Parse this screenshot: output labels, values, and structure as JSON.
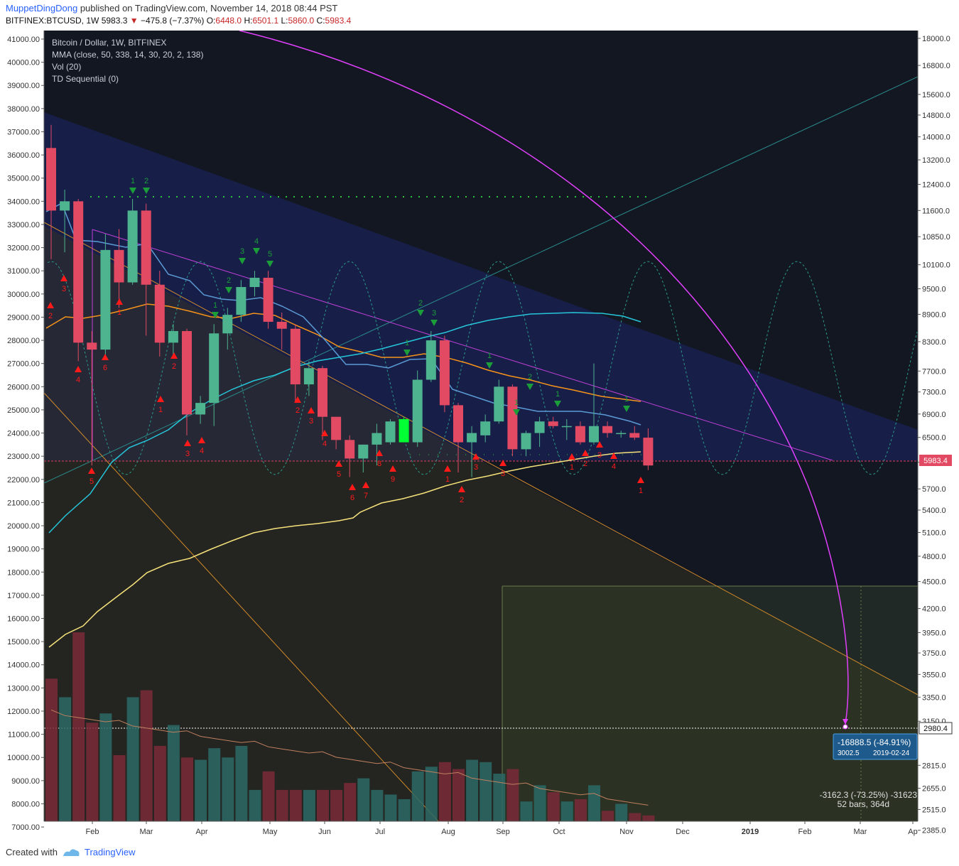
{
  "header": {
    "user": "MuppetDingDong",
    "published_text": "published on TradingView.com, November 14, 2018 08:44 PST",
    "symbol": "BITFINEX:BTCUSD, 1W",
    "last": "5983.3",
    "change": "−475.8 (−7.37%)",
    "o_label": "O:",
    "o": "6448.0",
    "h_label": "H:",
    "h": "6501.1",
    "l_label": "L:",
    "l": "5860.0",
    "c_label": "C:",
    "c": "5983.4"
  },
  "legend": {
    "line1": "Bitcoin / Dollar, 1W, BITFINEX",
    "line2": "MMA (close, 50, 338, 14, 30, 20, 2, 138)",
    "line3": "Vol (20)",
    "line4": "TD Sequential (0)"
  },
  "footer": {
    "created_with": "Created with",
    "brand": "TradingView"
  },
  "price_tags": {
    "last": "5983.4",
    "target": "2980.4",
    "measure_main": "-16888.5 (-84.91%)",
    "measure_sub": "3002.5",
    "measure_date": "2019-02-24",
    "range_main": "-3162.3 (-73.25%) -31623",
    "range_sub": "52 bars, 364d"
  },
  "colors": {
    "background": "#131722",
    "up": "#4eb38f",
    "down": "#e24a63",
    "bright_up": "#00ff33",
    "ma_orange": "#f7931a",
    "ma_yellow": "#f5e27a",
    "ma_blue": "#5b9bd5",
    "ma_cyan": "#26c6da",
    "magenta": "#e040fb",
    "td_buy": "#ff1a1a",
    "td_sell": "#1b9e3a"
  },
  "chart_data": {
    "type": "candlestick",
    "title": "Bitcoin / Dollar, 1W, BITFINEX",
    "timeframe": "1W",
    "x_ticks": [
      "Feb",
      "Mar",
      "Apr",
      "May",
      "Jun",
      "Jul",
      "Aug",
      "Sep",
      "Oct",
      "Nov",
      "Dec",
      "2019",
      "Feb",
      "Mar",
      "Ap"
    ],
    "left_axis_ticks": [
      "41000.00",
      "40000.00",
      "39000.00",
      "38000.00",
      "37000.00",
      "36000.00",
      "35000.00",
      "34000.00",
      "33000.00",
      "32000.00",
      "31000.00",
      "30000.00",
      "29000.00",
      "28000.00",
      "27000.00",
      "26000.00",
      "25000.00",
      "24000.00",
      "23000.00",
      "22000.00",
      "21000.00",
      "20000.00",
      "19000.00",
      "18000.00",
      "17000.00",
      "16000.00",
      "15000.00",
      "14000.00",
      "13000.00",
      "12000.00",
      "11000.00",
      "10000.00",
      "9000.00",
      "8000.00",
      "7000.00"
    ],
    "right_axis_ticks": [
      "18000.0",
      "16800.0",
      "15600.0",
      "14800.0",
      "14000.0",
      "13200.0",
      "12400.0",
      "11600.0",
      "10850.0",
      "10100.0",
      "9500.0",
      "8900.0",
      "8300.0",
      "7700.0",
      "7300.0",
      "6900.0",
      "6500.0",
      "6100.0",
      "5700.0",
      "5400.0",
      "5100.0",
      "4800.0",
      "4500.0",
      "4200.0",
      "3950.0",
      "3750.0",
      "3550.0",
      "3350.0",
      "3150.0",
      "2815.0",
      "2655.0",
      "2515.0",
      "2385.0"
    ],
    "right_axis_log": true,
    "candles_left_axis_units": [
      {
        "o": 36300,
        "h": 37300,
        "l": 31500,
        "c": 33600
      },
      {
        "o": 33600,
        "h": 34500,
        "l": 31800,
        "c": 34000
      },
      {
        "o": 34000,
        "h": 34100,
        "l": 27100,
        "c": 27900
      },
      {
        "o": 27900,
        "h": 28400,
        "l": 22600,
        "c": 27600
      },
      {
        "o": 27600,
        "h": 32600,
        "l": 27300,
        "c": 31900
      },
      {
        "o": 31900,
        "h": 32800,
        "l": 29400,
        "c": 30500
      },
      {
        "o": 30500,
        "h": 34100,
        "l": 30400,
        "c": 33600
      },
      {
        "o": 33600,
        "h": 33900,
        "l": 28200,
        "c": 30400
      },
      {
        "o": 30400,
        "h": 31000,
        "l": 27300,
        "c": 27900
      },
      {
        "o": 27900,
        "h": 28700,
        "l": 27300,
        "c": 28400
      },
      {
        "o": 28400,
        "h": 28500,
        "l": 23900,
        "c": 24800
      },
      {
        "o": 24800,
        "h": 25600,
        "l": 24400,
        "c": 25300
      },
      {
        "o": 25300,
        "h": 28700,
        "l": 24300,
        "c": 28300
      },
      {
        "o": 28300,
        "h": 29400,
        "l": 27600,
        "c": 29100
      },
      {
        "o": 29100,
        "h": 30600,
        "l": 28800,
        "c": 30300
      },
      {
        "o": 30300,
        "h": 31000,
        "l": 29900,
        "c": 30700
      },
      {
        "o": 30700,
        "h": 31000,
        "l": 28500,
        "c": 28800
      },
      {
        "o": 28800,
        "h": 29200,
        "l": 27600,
        "c": 28500
      },
      {
        "o": 28500,
        "h": 28700,
        "l": 25300,
        "c": 26100
      },
      {
        "o": 26100,
        "h": 27100,
        "l": 25600,
        "c": 26800
      },
      {
        "o": 26800,
        "h": 26900,
        "l": 23700,
        "c": 24700
      },
      {
        "o": 24700,
        "h": 24700,
        "l": 23300,
        "c": 23700
      },
      {
        "o": 23700,
        "h": 23900,
        "l": 22100,
        "c": 22900
      },
      {
        "o": 22900,
        "h": 23500,
        "l": 22300,
        "c": 23500
      },
      {
        "o": 23500,
        "h": 24400,
        "l": 22600,
        "c": 24000
      },
      {
        "o": 23600,
        "h": 24600,
        "l": 23500,
        "c": 24500
      },
      {
        "o": 23600,
        "h": 24700,
        "l": 23600,
        "c": 24600
      },
      {
        "o": 23600,
        "h": 26700,
        "l": 23400,
        "c": 26300
      },
      {
        "o": 26300,
        "h": 28400,
        "l": 26200,
        "c": 28000
      },
      {
        "o": 28000,
        "h": 28200,
        "l": 24900,
        "c": 25200
      },
      {
        "o": 25200,
        "h": 25300,
        "l": 22300,
        "c": 23600
      },
      {
        "o": 23600,
        "h": 24300,
        "l": 22100,
        "c": 24000
      },
      {
        "o": 23900,
        "h": 24800,
        "l": 23600,
        "c": 24500
      },
      {
        "o": 24500,
        "h": 26300,
        "l": 24400,
        "c": 26000
      },
      {
        "o": 26000,
        "h": 26100,
        "l": 23000,
        "c": 23300
      },
      {
        "o": 23300,
        "h": 24100,
        "l": 23000,
        "c": 24000
      },
      {
        "o": 24000,
        "h": 24700,
        "l": 23400,
        "c": 24500
      },
      {
        "o": 24500,
        "h": 24700,
        "l": 24200,
        "c": 24300
      },
      {
        "o": 24300,
        "h": 24600,
        "l": 23700,
        "c": 24300
      },
      {
        "o": 24300,
        "h": 24500,
        "l": 23500,
        "c": 23600
      },
      {
        "o": 23600,
        "h": 27000,
        "l": 23500,
        "c": 24300
      },
      {
        "o": 24300,
        "h": 24500,
        "l": 23800,
        "c": 24000
      },
      {
        "o": 24000,
        "h": 24100,
        "l": 23800,
        "c": 24000
      },
      {
        "o": 24000,
        "h": 24300,
        "l": 23700,
        "c": 23800
      },
      {
        "o": 23800,
        "h": 24200,
        "l": 22400,
        "c": 22600
      }
    ],
    "volume_left_axis_units": [
      13400,
      12600,
      15400,
      11500,
      11900,
      10100,
      12600,
      12900,
      10500,
      11400,
      10000,
      9900,
      10400,
      10000,
      10500,
      8600,
      9400,
      8600,
      8600,
      8600,
      8600,
      8600,
      8900,
      9100,
      8600,
      8400,
      8200,
      9400,
      9600,
      9800,
      9500,
      9900,
      9800,
      9300,
      9500,
      8100,
      8800,
      8500,
      8100,
      8200,
      8800,
      7700,
      8000,
      7600,
      7500
    ],
    "td_sequential": {
      "buy_setup_labels": [
        "2",
        "3",
        "4",
        "5",
        "6",
        "1",
        "2",
        "3",
        "4",
        "1",
        "2",
        "3",
        "4",
        "5",
        "6",
        "7",
        "8",
        "9",
        "1",
        "2",
        "3",
        "1",
        "2",
        "3",
        "4",
        "1"
      ],
      "sell_setup_labels": [
        "1",
        "2",
        "1",
        "2",
        "3",
        "4",
        "5",
        "1",
        "2",
        "3",
        "1",
        "1",
        "2",
        "1"
      ]
    },
    "moving_averages": [
      "MMA 14",
      "MMA 30",
      "MMA 50",
      "MMA 138"
    ],
    "last_price": 5983.4,
    "projected_target": 2980.4
  }
}
